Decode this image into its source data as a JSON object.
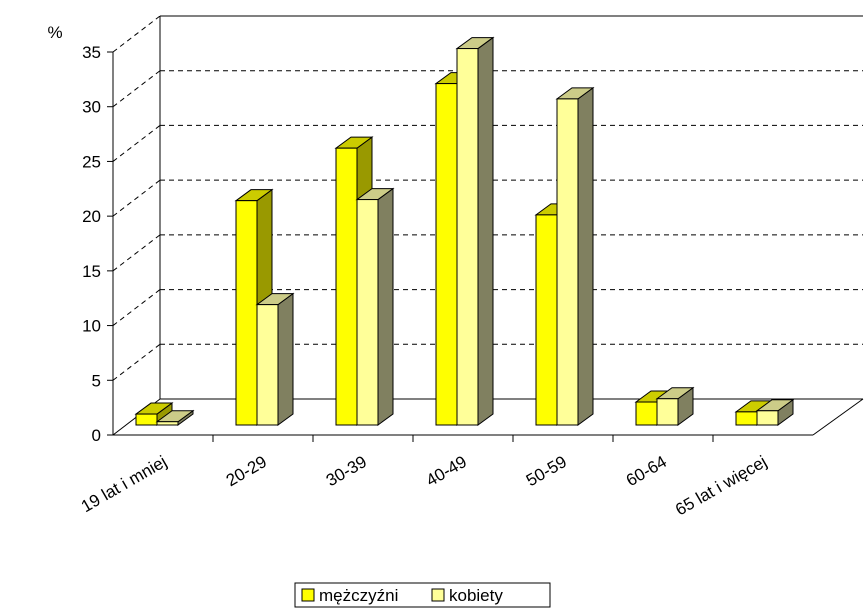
{
  "chart_data": {
    "type": "bar",
    "ylabel": "%",
    "ylim": [
      0,
      35
    ],
    "yticks": [
      "0",
      "5",
      "10",
      "15",
      "20",
      "25",
      "30",
      "35"
    ],
    "categories": [
      "19 lat i mniej",
      "20-29",
      "30-39",
      "40-49",
      "50-59",
      "60-64",
      "65 lat i więcej"
    ],
    "series": [
      {
        "name": "mężczyźni",
        "values": [
          1.0,
          20.5,
          25.3,
          31.2,
          19.2,
          2.1,
          1.2
        ],
        "color": "#ffff00"
      },
      {
        "name": "kobiety",
        "values": [
          0.3,
          11.0,
          20.6,
          34.4,
          29.8,
          2.4,
          1.3
        ],
        "color": "#ffff99"
      }
    ],
    "grid": "dashed horizontal",
    "legend_position": "bottom",
    "three_d": true
  }
}
